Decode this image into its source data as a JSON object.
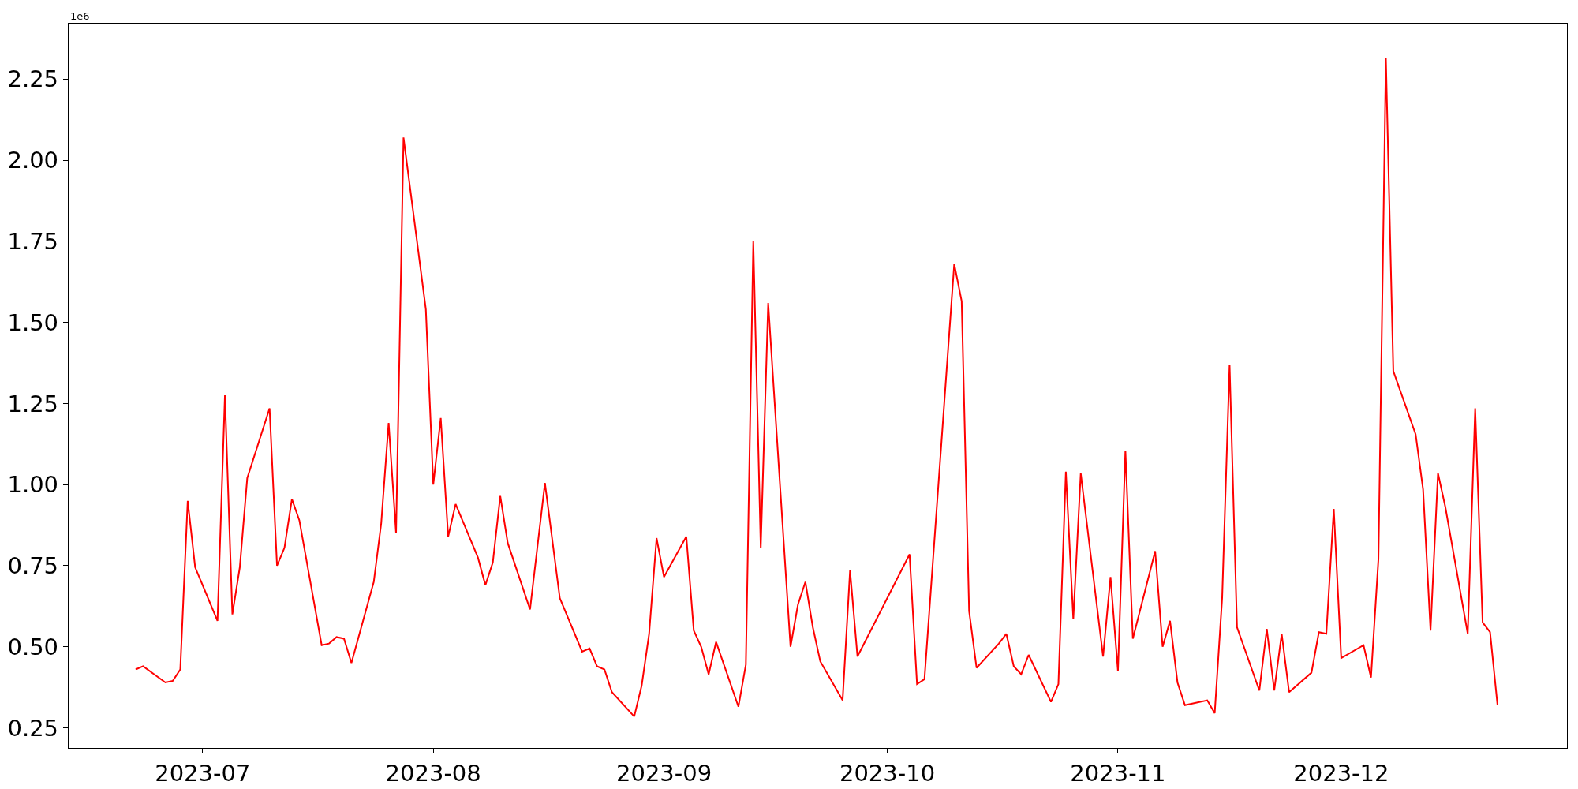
{
  "chart_data": {
    "type": "line",
    "x": [
      "2023-06-22",
      "2023-06-23",
      "2023-06-26",
      "2023-06-27",
      "2023-06-28",
      "2023-06-29",
      "2023-06-30",
      "2023-07-03",
      "2023-07-04",
      "2023-07-05",
      "2023-07-06",
      "2023-07-07",
      "2023-07-10",
      "2023-07-11",
      "2023-07-12",
      "2023-07-13",
      "2023-07-14",
      "2023-07-17",
      "2023-07-18",
      "2023-07-19",
      "2023-07-20",
      "2023-07-21",
      "2023-07-24",
      "2023-07-25",
      "2023-07-26",
      "2023-07-27",
      "2023-07-28",
      "2023-07-31",
      "2023-08-01",
      "2023-08-02",
      "2023-08-03",
      "2023-08-04",
      "2023-08-07",
      "2023-08-08",
      "2023-08-09",
      "2023-08-10",
      "2023-08-11",
      "2023-08-14",
      "2023-08-16",
      "2023-08-18",
      "2023-08-21",
      "2023-08-22",
      "2023-08-23",
      "2023-08-24",
      "2023-08-25",
      "2023-08-28",
      "2023-08-29",
      "2023-08-30",
      "2023-08-31",
      "2023-09-01",
      "2023-09-04",
      "2023-09-05",
      "2023-09-06",
      "2023-09-07",
      "2023-09-08",
      "2023-09-11",
      "2023-09-12",
      "2023-09-13",
      "2023-09-14",
      "2023-09-15",
      "2023-09-18",
      "2023-09-19",
      "2023-09-20",
      "2023-09-21",
      "2023-09-22",
      "2023-09-25",
      "2023-09-26",
      "2023-09-27",
      "2023-10-04",
      "2023-10-05",
      "2023-10-06",
      "2023-10-10",
      "2023-10-11",
      "2023-10-12",
      "2023-10-13",
      "2023-10-16",
      "2023-10-17",
      "2023-10-18",
      "2023-10-19",
      "2023-10-20",
      "2023-10-23",
      "2023-10-24",
      "2023-10-25",
      "2023-10-26",
      "2023-10-27",
      "2023-10-30",
      "2023-10-31",
      "2023-11-01",
      "2023-11-02",
      "2023-11-03",
      "2023-11-06",
      "2023-11-07",
      "2023-11-08",
      "2023-11-09",
      "2023-11-10",
      "2023-11-13",
      "2023-11-14",
      "2023-11-15",
      "2023-11-16",
      "2023-11-17",
      "2023-11-20",
      "2023-11-21",
      "2023-11-22",
      "2023-11-23",
      "2023-11-24",
      "2023-11-27",
      "2023-11-28",
      "2023-11-29",
      "2023-11-30",
      "2023-12-01",
      "2023-12-04",
      "2023-12-05",
      "2023-12-06",
      "2023-12-07",
      "2023-12-08",
      "2023-12-11",
      "2023-12-12",
      "2023-12-13",
      "2023-12-14",
      "2023-12-15",
      "2023-12-18",
      "2023-12-19",
      "2023-12-20",
      "2023-12-21",
      "2023-12-22"
    ],
    "series": [
      {
        "color": "#ff0000",
        "values": [
          0.43,
          0.44,
          0.39,
          0.395,
          0.43,
          0.95,
          0.745,
          0.58,
          1.275,
          0.6,
          0.745,
          1.02,
          1.235,
          0.75,
          0.805,
          0.955,
          0.89,
          0.505,
          0.51,
          0.53,
          0.525,
          0.45,
          0.7,
          0.88,
          1.19,
          0.85,
          2.07,
          1.54,
          1.0,
          1.205,
          0.84,
          0.94,
          0.775,
          0.69,
          0.76,
          0.965,
          0.82,
          0.615,
          1.005,
          0.65,
          0.485,
          0.495,
          0.44,
          0.43,
          0.36,
          0.285,
          0.38,
          0.54,
          0.835,
          0.715,
          0.84,
          0.55,
          0.5,
          0.415,
          0.515,
          0.315,
          0.445,
          1.75,
          0.805,
          1.56,
          0.5,
          0.63,
          0.7,
          0.56,
          0.455,
          0.335,
          0.735,
          0.47,
          0.785,
          0.385,
          0.4,
          1.68,
          1.565,
          0.61,
          0.435,
          0.51,
          0.54,
          0.44,
          0.415,
          0.475,
          0.33,
          0.385,
          1.04,
          0.585,
          1.035,
          0.47,
          0.715,
          0.425,
          1.105,
          0.525,
          0.795,
          0.5,
          0.58,
          0.39,
          0.32,
          0.335,
          0.295,
          0.65,
          1.37,
          0.56,
          0.365,
          0.555,
          0.365,
          0.54,
          0.36,
          0.42,
          0.545,
          0.54,
          0.925,
          0.465,
          0.505,
          0.405,
          0.77,
          2.315,
          1.35,
          1.155,
          0.985,
          0.55,
          1.035,
          0.93,
          0.54,
          1.235,
          0.575,
          0.545,
          0.32
        ]
      }
    ],
    "xlim": [
      "2023-06-13",
      "2023-12-31T08:00"
    ],
    "xticks": [
      {
        "value": "2023-07-01",
        "label": "2023-07"
      },
      {
        "value": "2023-08-01",
        "label": "2023-08"
      },
      {
        "value": "2023-09-01",
        "label": "2023-09"
      },
      {
        "value": "2023-10-01",
        "label": "2023-10"
      },
      {
        "value": "2023-11-01",
        "label": "2023-11"
      },
      {
        "value": "2023-12-01",
        "label": "2023-12"
      }
    ],
    "ylim": [
      0.188,
      2.421
    ],
    "yticks": [
      {
        "value": 0.25,
        "label": "0.25"
      },
      {
        "value": 0.5,
        "label": "0.50"
      },
      {
        "value": 0.75,
        "label": "0.75"
      },
      {
        "value": 1.0,
        "label": "1.00"
      },
      {
        "value": 1.25,
        "label": "1.25"
      },
      {
        "value": 1.5,
        "label": "1.50"
      },
      {
        "value": 1.75,
        "label": "1.75"
      },
      {
        "value": 2.0,
        "label": "2.00"
      },
      {
        "value": 2.25,
        "label": "2.25"
      }
    ],
    "annotations": [
      "1e6"
    ],
    "grid": false,
    "marker": "none",
    "line_style": "solid"
  }
}
